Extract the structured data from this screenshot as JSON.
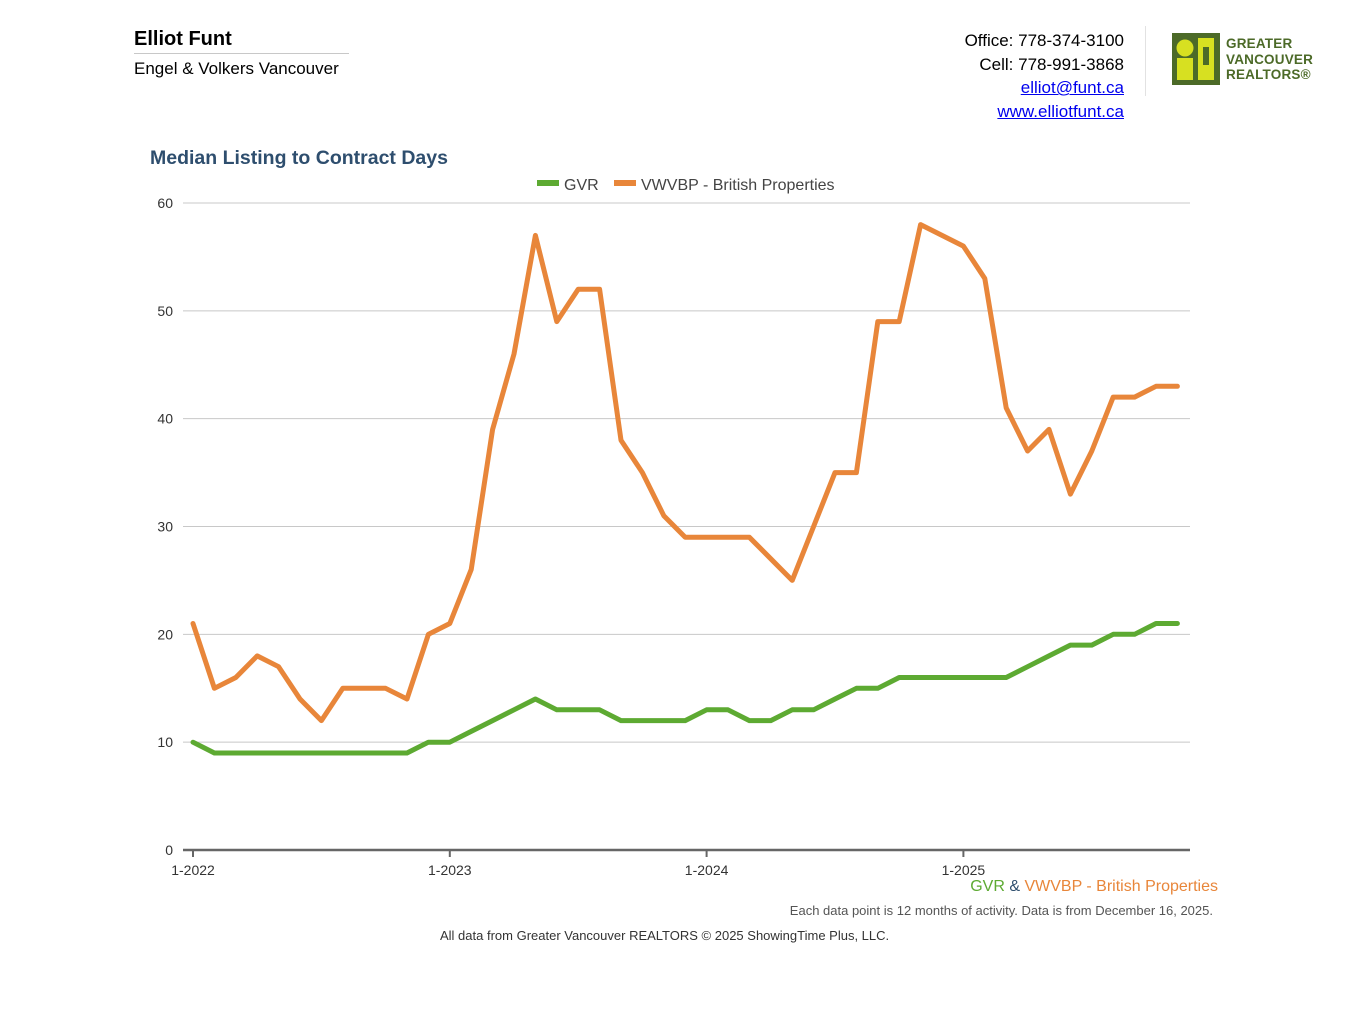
{
  "header": {
    "agent_name": "Elliot Funt",
    "company": "Engel & Volkers Vancouver",
    "office": "Office: 778-374-3100",
    "cell": "Cell: 778-991-3868",
    "email": "elliot@funt.ca",
    "website": "www.elliotfunt.ca",
    "logo_line1": "GREATER",
    "logo_line2": "VANCOUVER",
    "logo_line3": "REALTORS®"
  },
  "colors": {
    "gvr": "#5daa32",
    "vwvbp": "#e8863a",
    "title": "#2e4e6e",
    "logo": "#4c6a28"
  },
  "chart_data": {
    "type": "line",
    "title": "Median Listing to Contract Days",
    "xlabel": "",
    "ylabel": "",
    "ylim": [
      0,
      60
    ],
    "yticks": [
      0,
      10,
      20,
      30,
      40,
      50,
      60
    ],
    "xtick_labels": [
      "1-2022",
      "1-2023",
      "1-2024",
      "1-2025"
    ],
    "x": [
      "1-2022",
      "2-2022",
      "3-2022",
      "4-2022",
      "5-2022",
      "6-2022",
      "7-2022",
      "8-2022",
      "9-2022",
      "10-2022",
      "11-2022",
      "12-2022",
      "1-2023",
      "2-2023",
      "3-2023",
      "4-2023",
      "5-2023",
      "6-2023",
      "7-2023",
      "8-2023",
      "9-2023",
      "10-2023",
      "11-2023",
      "12-2023",
      "1-2024",
      "2-2024",
      "3-2024",
      "4-2024",
      "5-2024",
      "6-2024",
      "7-2024",
      "8-2024",
      "9-2024",
      "10-2024",
      "11-2024",
      "12-2024",
      "1-2025",
      "2-2025",
      "3-2025",
      "4-2025",
      "5-2025",
      "6-2025",
      "7-2025",
      "8-2025",
      "9-2025",
      "10-2025",
      "11-2025"
    ],
    "grid": true,
    "legend_position": "top",
    "series": [
      {
        "name": "GVR",
        "values": [
          10,
          9,
          9,
          9,
          9,
          9,
          9,
          9,
          9,
          9,
          9,
          10,
          10,
          11,
          12,
          13,
          14,
          13,
          13,
          13,
          12,
          12,
          12,
          12,
          13,
          13,
          12,
          12,
          13,
          13,
          14,
          15,
          15,
          16,
          16,
          16,
          16,
          16,
          16,
          17,
          18,
          19,
          19,
          20,
          20,
          21,
          21
        ]
      },
      {
        "name": "VWVBP - British Properties",
        "values": [
          21,
          15,
          16,
          18,
          17,
          14,
          12,
          15,
          15,
          15,
          14,
          20,
          21,
          26,
          39,
          46,
          57,
          49,
          52,
          52,
          38,
          35,
          31,
          29,
          29,
          29,
          29,
          27,
          25,
          30,
          35,
          35,
          49,
          49,
          58,
          57,
          56,
          53,
          41,
          37,
          39,
          33,
          37,
          42,
          42,
          43,
          43
        ]
      }
    ]
  },
  "footer": {
    "legend_gvr": "GVR",
    "legend_amp": " & ",
    "legend_vwvbp": "VWVBP - British Properties",
    "note1": "Each data point is 12 months of activity. Data is from December 16, 2025.",
    "note2": "All data from Greater Vancouver REALTORS © 2025 ShowingTime Plus, LLC."
  }
}
